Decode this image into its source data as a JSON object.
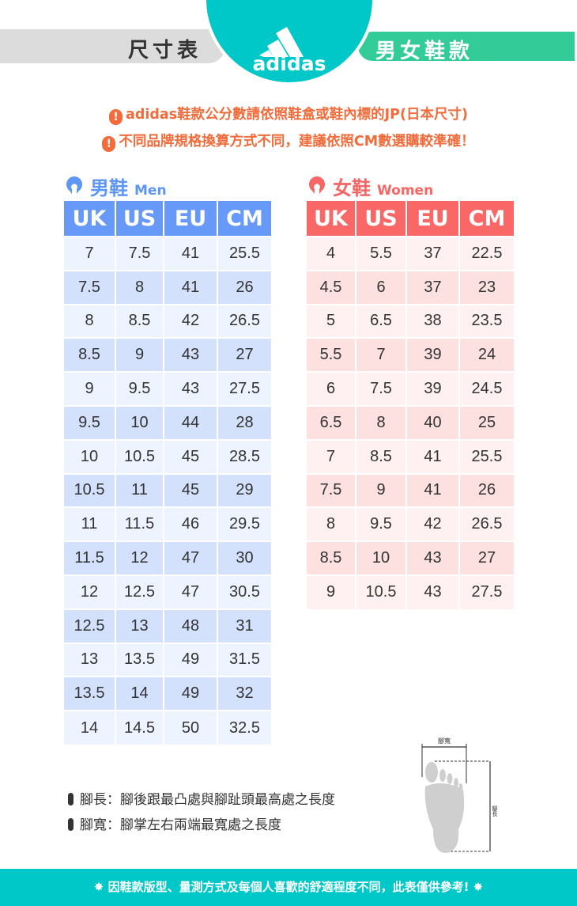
{
  "header": {
    "left_label": "尺寸表",
    "right_label": "男女鞋款",
    "brand": "adidas",
    "brand_color": "#00c8c8"
  },
  "notes": [
    "adidas鞋款公分數請依照鞋盒或鞋內標的JP(日本尺寸)",
    "不同品牌規格換算方式不同，建議依照CM數選購較準確！"
  ],
  "men": {
    "title": "男鞋",
    "subtitle": "Men",
    "color": "#6699f8",
    "columns": [
      "UK",
      "US",
      "EU",
      "CM"
    ],
    "rows": [
      [
        "7",
        "7.5",
        "41",
        "25.5"
      ],
      [
        "7.5",
        "8",
        "41",
        "26"
      ],
      [
        "8",
        "8.5",
        "42",
        "26.5"
      ],
      [
        "8.5",
        "9",
        "43",
        "27"
      ],
      [
        "9",
        "9.5",
        "43",
        "27.5"
      ],
      [
        "9.5",
        "10",
        "44",
        "28"
      ],
      [
        "10",
        "10.5",
        "45",
        "28.5"
      ],
      [
        "10.5",
        "11",
        "45",
        "29"
      ],
      [
        "11",
        "11.5",
        "46",
        "29.5"
      ],
      [
        "11.5",
        "12",
        "47",
        "30"
      ],
      [
        "12",
        "12.5",
        "47",
        "30.5"
      ],
      [
        "12.5",
        "13",
        "48",
        "31"
      ],
      [
        "13",
        "13.5",
        "49",
        "31.5"
      ],
      [
        "13.5",
        "14",
        "49",
        "32"
      ],
      [
        "14",
        "14.5",
        "50",
        "32.5"
      ]
    ]
  },
  "women": {
    "title": "女鞋",
    "subtitle": "Women",
    "color": "#fa6767",
    "columns": [
      "UK",
      "US",
      "EU",
      "CM"
    ],
    "rows": [
      [
        "4",
        "5.5",
        "37",
        "22.5"
      ],
      [
        "4.5",
        "6",
        "37",
        "23"
      ],
      [
        "5",
        "6.5",
        "38",
        "23.5"
      ],
      [
        "5.5",
        "7",
        "39",
        "24"
      ],
      [
        "6",
        "7.5",
        "39",
        "24.5"
      ],
      [
        "6.5",
        "8",
        "40",
        "25"
      ],
      [
        "7",
        "8.5",
        "41",
        "25.5"
      ],
      [
        "7.5",
        "9",
        "41",
        "26"
      ],
      [
        "8",
        "9.5",
        "42",
        "26.5"
      ],
      [
        "8.5",
        "10",
        "43",
        "27"
      ],
      [
        "9",
        "10.5",
        "43",
        "27.5"
      ]
    ]
  },
  "definitions": [
    "腳長：腳後跟最凸處與腳趾頭最高處之長度",
    "腳寬：腳掌左右兩端最寬處之長度"
  ],
  "diagram": {
    "width_label": "腳寬",
    "length_label": "腳長"
  },
  "footer": {
    "text": "✸ 因鞋款版型、量測方式及每個人喜歡的舒適程度不同，此表僅供參考! ✸"
  }
}
